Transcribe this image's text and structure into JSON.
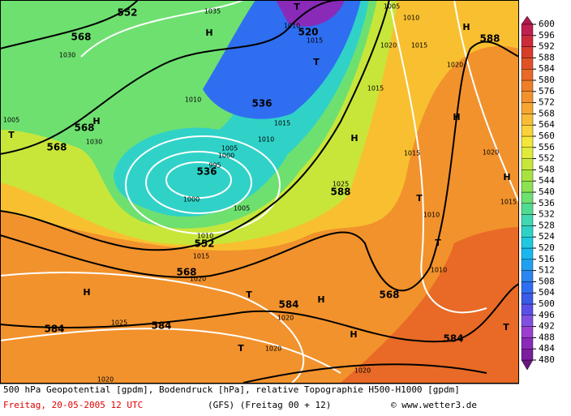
{
  "footer": {
    "description": "500 hPa Geopotential [gpdm], Bodendruck [hPa], relative Topographie H500-H1000 [gpdm]",
    "date": "Freitag, 20-05-2005  12 UTC",
    "model": "(GFS)  (Freitag 00 + 12)",
    "credit": "© www.wetter3.de"
  },
  "colorbar": {
    "ticks": [
      480,
      484,
      488,
      492,
      496,
      500,
      504,
      508,
      512,
      516,
      520,
      524,
      528,
      532,
      536,
      540,
      544,
      548,
      552,
      556,
      560,
      564,
      568,
      572,
      576,
      580,
      584,
      588,
      592,
      596,
      600
    ],
    "colors": [
      "#7a1f9e",
      "#8a2ab8",
      "#9a3fd0",
      "#8050e0",
      "#5a50e8",
      "#3a5ae8",
      "#2f6ef0",
      "#2a86f0",
      "#20a0f0",
      "#18b8ee",
      "#20c8e0",
      "#30d2c8",
      "#40d8b0",
      "#50dc90",
      "#6ee070",
      "#8ce250",
      "#a8e240",
      "#c8e63a",
      "#e0ea3a",
      "#f4e63a",
      "#fad23a",
      "#f8bc34",
      "#f6a630",
      "#f2922c",
      "#ee7e28",
      "#e86a26",
      "#e05226",
      "#d83c2a",
      "#cc2c3a",
      "#c02050"
    ]
  },
  "map_labels": [
    "552",
    "1035",
    "T",
    "1005",
    "1010",
    "1010",
    "520",
    "1015",
    "H",
    "568",
    "1030",
    "1020",
    "1015",
    "H",
    "588",
    "T",
    "1020",
    "1010",
    "536",
    "1015",
    "1005",
    "568",
    "H",
    "T",
    "1030",
    "1015",
    "1010",
    "H",
    "H",
    "568",
    "1005",
    "1000",
    "1015",
    "1020",
    "995",
    "536",
    "H",
    "1025",
    "588",
    "1000",
    "T",
    "1005",
    "1010",
    "1015",
    "1010",
    "552",
    "T",
    "1015",
    "1010",
    "568",
    "1020",
    "H",
    "T",
    "H",
    "568",
    "584",
    "1020",
    "1025",
    "584",
    "584",
    "H",
    "584",
    "T",
    "T",
    "1020",
    "1020",
    "1020"
  ]
}
